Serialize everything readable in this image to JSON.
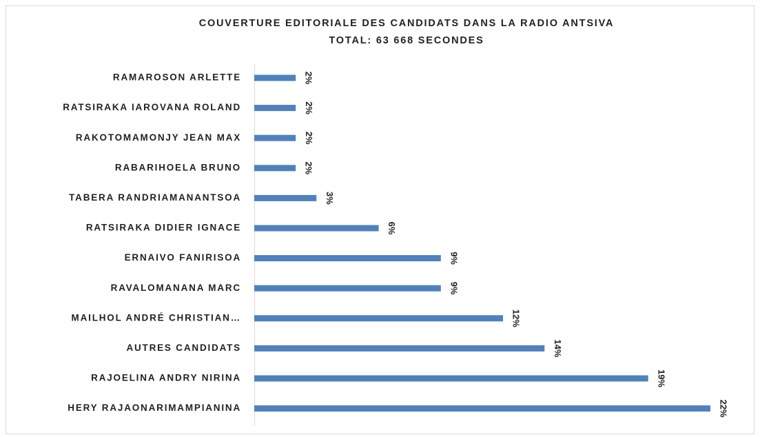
{
  "chart_data": {
    "type": "bar",
    "orientation": "horizontal",
    "title": "COUVERTURE EDITORIALE DES CANDIDATS DANS LA RADIO ANTSIVA",
    "subtitle": "TOTAL: 63 668 SECONDES",
    "categories": [
      "RAMAROSON ARLETTE",
      "RATSIRAKA IAROVANA ROLAND",
      "RAKOTOMAMONJY JEAN MAX",
      "RABARIHOELA BRUNO",
      "TABERA RANDRIAMANANTSOA",
      "RATSIRAKA DIDIER IGNACE",
      "ERNAIVO FANIRISOA",
      "RAVALOMANANA MARC",
      "MAILHOL ANDRÉ CHRISTIAN…",
      "AUTRES CANDIDATS",
      "RAJOELINA ANDRY NIRINA",
      "HERY RAJAONARIMAMPIANINA"
    ],
    "values": [
      2,
      2,
      2,
      2,
      3,
      6,
      9,
      9,
      12,
      14,
      19,
      22
    ],
    "value_labels": [
      "2%",
      "2%",
      "2%",
      "2%",
      "3%",
      "6%",
      "9%",
      "9%",
      "12%",
      "14%",
      "19%",
      "22%"
    ],
    "color": "#4f81bd"
  }
}
